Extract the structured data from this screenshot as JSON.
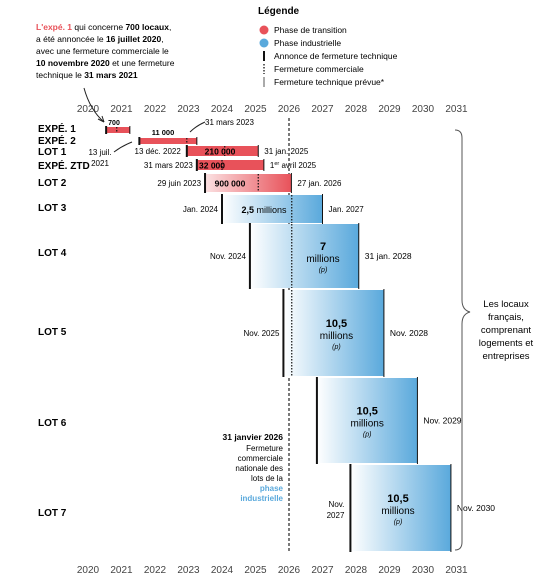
{
  "annotation_top": {
    "line1_a": "L'expé. 1",
    "line1_b": " qui concerne ",
    "line1_c": "700 locaux",
    "line1_d": ",",
    "line2_a": "a été annoncée le ",
    "line2_b": "16 juillet 2020",
    "line2_c": ",",
    "line3": "avec une fermeture commerciale le",
    "line4_a": "10 novembre 2020",
    "line4_b": " et une fermeture",
    "line5_a": "technique le ",
    "line5_b": "31 mars 2021"
  },
  "legend": {
    "title": "Légende",
    "items": [
      {
        "label": "Phase de transition",
        "color": "#e8525a"
      },
      {
        "label": "Phase industrielle",
        "color": "#5aa9dc"
      },
      {
        "label": "Annonce de fermeture technique"
      },
      {
        "label": "Fermeture commerciale"
      },
      {
        "label": "Fermeture technique prévue*"
      }
    ]
  },
  "side_note": [
    "Les locaux",
    "français,",
    "comprenant",
    "logements et",
    "entreprises"
  ],
  "lot_note": {
    "line1": "31 janvier 2026",
    "line2": "Fermeture",
    "line3": "commerciale",
    "line4": "nationale des",
    "line5": "lots de la",
    "line6": "phase",
    "line7": "industrielle"
  },
  "colors": {
    "transition": "#e8525a",
    "industrial": "#5aa9dc"
  },
  "chart_data": {
    "type": "gantt",
    "x_ticks": [
      "2020",
      "2021",
      "2022",
      "2023",
      "2024",
      "2025",
      "2026",
      "2027",
      "2028",
      "2029",
      "2030",
      "2031"
    ],
    "xlim": [
      2020,
      2031
    ],
    "rows": [
      {
        "label": "EXPÉ. 1",
        "phase": "transition",
        "announce": "2020-07-16",
        "commercial": "2020-11-10",
        "technical": "2021-03-31",
        "value": "700",
        "announce_label": "13 juil. 2021",
        "end_label": ""
      },
      {
        "label": "EXPÉ. 2",
        "phase": "transition",
        "announce": "2021-07-13",
        "commercial": "2022-12-13",
        "technical": "2023-03-31",
        "value": "11 000",
        "announce_label": "",
        "end_label": "31 mars 2023"
      },
      {
        "label": "LOT 1",
        "phase": "transition",
        "announce": "2022-12-13",
        "commercial": "2024-01-31",
        "technical": "2025-01-31",
        "value": "210 000",
        "announce_label": "13 déc. 2022",
        "end_label": "31 jan. 2025"
      },
      {
        "label": "EXPÉ. ZTD",
        "phase": "transition",
        "announce": "2023-03-31",
        "commercial": "2024-01-01",
        "technical": "2025-04-01",
        "value": "32 000",
        "announce_label": "31 mars 2023",
        "end_label_a": "1",
        "end_label_sup": "er",
        "end_label_b": " avril 2025"
      },
      {
        "label": "LOT 2",
        "phase": "transition",
        "announce": "2023-06-29",
        "commercial": "2025-01-31",
        "technical": "2026-01-27",
        "value": "900 000",
        "announce_label": "29 juin 2023",
        "end_label": "27 jan. 2026"
      },
      {
        "label": "LOT 3",
        "phase": "industrial",
        "announce": "2024-01-01",
        "commercial": "2026-01-31",
        "technical": "2027-01-01",
        "value": "2,5",
        "value_unit": "millions",
        "announce_label": "Jan. 2024",
        "end_label": "Jan. 2027"
      },
      {
        "label": "LOT 4",
        "phase": "industrial",
        "announce": "2024-11-01",
        "commercial": "2026-01-31",
        "technical": "2028-01-31",
        "value": "7",
        "value_unit": "millions",
        "value_note": "(p)",
        "announce_label": "Nov. 2024",
        "end_label": "31 jan. 2028"
      },
      {
        "label": "LOT 5",
        "phase": "industrial",
        "announce": "2025-11-01",
        "commercial": "2026-01-31",
        "technical": "2028-11-01",
        "value": "10,5",
        "value_unit": "millions",
        "value_note": "(p)",
        "announce_label": "Nov. 2025",
        "end_label": "Nov. 2028"
      },
      {
        "label": "LOT 6",
        "phase": "industrial",
        "announce": "2026-11-01",
        "commercial": "2026-01-31",
        "technical": "2029-11-01",
        "value": "10,5",
        "value_unit": "millions",
        "value_note": "(p)",
        "announce_label": "",
        "end_label": "Nov. 2029"
      },
      {
        "label": "LOT 7",
        "phase": "industrial",
        "announce": "2027-11-01",
        "commercial": "2026-01-31",
        "technical": "2030-11-01",
        "value": "10,5",
        "value_unit": "millions",
        "value_note": "(p)",
        "announce_label_a": "Nov.",
        "announce_label_b": "2027",
        "end_label": "Nov. 2030"
      }
    ]
  }
}
